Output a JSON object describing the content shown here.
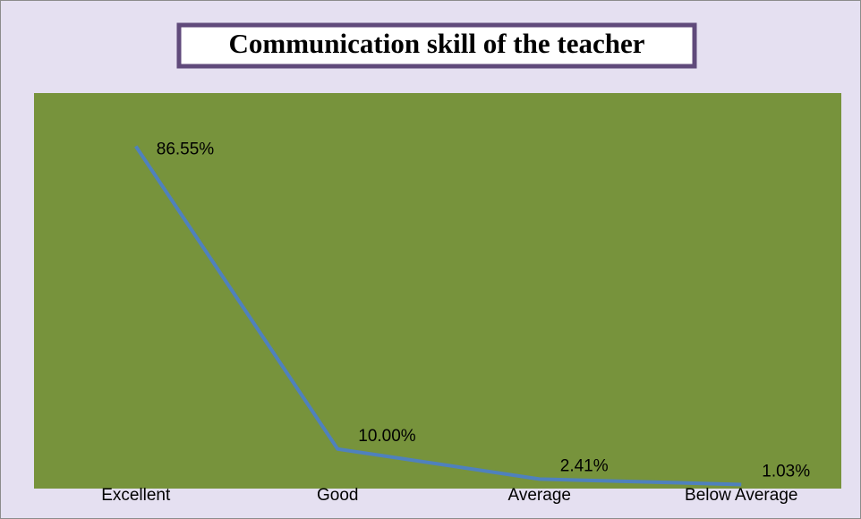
{
  "chart_data": {
    "type": "line",
    "title": "Communication skill of the teacher",
    "categories": [
      "Excellent",
      "Good",
      "Average",
      "Below Average"
    ],
    "values": [
      86.55,
      10,
      2.41,
      1.03
    ],
    "value_labels": [
      "86.55%",
      "10.00%",
      "2.41%",
      "1.03%"
    ],
    "color": "#4f81bd",
    "ylim": [
      0,
      100
    ]
  }
}
